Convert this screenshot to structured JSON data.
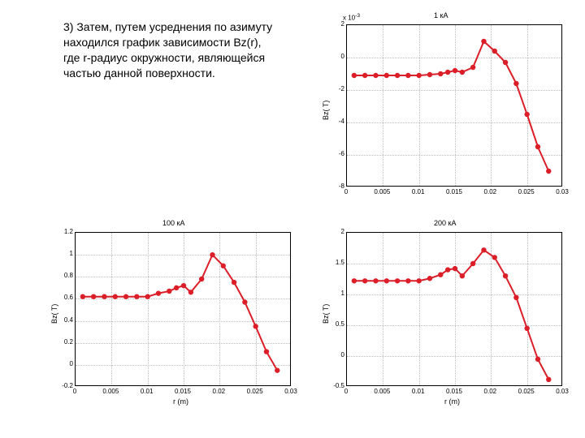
{
  "paragraph": "3) Затем, путем усреднения по азимуту находился график зависимости Bz(r), где r-радиус окружности, являющейся частью данной поверхности.",
  "common": {
    "line_color": "#dc1e28",
    "marker_color": "#dc1e28",
    "grid_color": "#bfbfbf",
    "background_color": "#ffffff",
    "line_width": 2,
    "marker_radius": 3.2,
    "font_color": "#000000",
    "tick_fontsize": 8,
    "label_fontsize": 9
  },
  "chart_topright": {
    "type": "line",
    "title": "1 кА",
    "ylabel": "Bz( T)",
    "xlabel": "",
    "yexponent": "x 10",
    "yexponent_power": "-3",
    "xlim": [
      0,
      0.03
    ],
    "ylim": [
      -8,
      2
    ],
    "xticks": [
      0,
      0.005,
      0.01,
      0.015,
      0.02,
      0.025,
      0.03
    ],
    "xtick_labels": [
      "0",
      "0.005",
      "0.01",
      "0.015",
      "0.02",
      "0.025",
      "0.03"
    ],
    "yticks": [
      -8,
      -6,
      -4,
      -2,
      0,
      2
    ],
    "ytick_labels": [
      "-8",
      "-6",
      "-4",
      "-2",
      "0",
      "2"
    ],
    "x": [
      0.001,
      0.0025,
      0.004,
      0.0055,
      0.007,
      0.0085,
      0.01,
      0.0115,
      0.013,
      0.014,
      0.015,
      0.016,
      0.0175,
      0.019,
      0.0205,
      0.022,
      0.0235,
      0.025,
      0.0265,
      0.028
    ],
    "y": [
      -1.1,
      -1.1,
      -1.1,
      -1.1,
      -1.1,
      -1.1,
      -1.1,
      -1.05,
      -1.0,
      -0.9,
      -0.8,
      -0.9,
      -0.6,
      1.0,
      0.4,
      -0.3,
      -1.6,
      -3.5,
      -5.5,
      -7.0
    ]
  },
  "chart_botleft": {
    "type": "line",
    "title": "100 кА",
    "ylabel": "Bz( T)",
    "xlabel": "r (m)",
    "xlim": [
      0,
      0.03
    ],
    "ylim": [
      -0.2,
      1.2
    ],
    "xticks": [
      0,
      0.005,
      0.01,
      0.015,
      0.02,
      0.025,
      0.03
    ],
    "xtick_labels": [
      "0",
      "0.005",
      "0.01",
      "0.015",
      "0.02",
      "0.025",
      "0.03"
    ],
    "yticks": [
      -0.2,
      0,
      0.2,
      0.4,
      0.6,
      0.8,
      1.0,
      1.2
    ],
    "ytick_labels": [
      "-0.2",
      "0",
      "0.2",
      "0.4",
      "0.6",
      "0.8",
      "1",
      "1.2"
    ],
    "x": [
      0.001,
      0.0025,
      0.004,
      0.0055,
      0.007,
      0.0085,
      0.01,
      0.0115,
      0.013,
      0.014,
      0.015,
      0.016,
      0.0175,
      0.019,
      0.0205,
      0.022,
      0.0235,
      0.025,
      0.0265,
      0.028
    ],
    "y": [
      0.62,
      0.62,
      0.62,
      0.62,
      0.62,
      0.62,
      0.62,
      0.65,
      0.67,
      0.7,
      0.72,
      0.66,
      0.78,
      1.0,
      0.9,
      0.75,
      0.57,
      0.35,
      0.12,
      -0.05
    ]
  },
  "chart_botright": {
    "type": "line",
    "title": "200 кА",
    "ylabel": "Bz( T)",
    "xlabel": "r (m)",
    "xlim": [
      0,
      0.03
    ],
    "ylim": [
      -0.5,
      2.0
    ],
    "xticks": [
      0,
      0.005,
      0.01,
      0.015,
      0.02,
      0.025,
      0.03
    ],
    "xtick_labels": [
      "0",
      "0.005",
      "0.01",
      "0.015",
      "0.02",
      "0.025",
      "0.03"
    ],
    "yticks": [
      -0.5,
      0,
      0.5,
      1.0,
      1.5,
      2.0
    ],
    "ytick_labels": [
      "-0.5",
      "0",
      "0.5",
      "1",
      "1.5",
      "2"
    ],
    "x": [
      0.001,
      0.0025,
      0.004,
      0.0055,
      0.007,
      0.0085,
      0.01,
      0.0115,
      0.013,
      0.014,
      0.015,
      0.016,
      0.0175,
      0.019,
      0.0205,
      0.022,
      0.0235,
      0.025,
      0.0265,
      0.028
    ],
    "y": [
      1.22,
      1.22,
      1.22,
      1.22,
      1.22,
      1.22,
      1.22,
      1.26,
      1.32,
      1.4,
      1.42,
      1.3,
      1.5,
      1.72,
      1.6,
      1.3,
      0.95,
      0.45,
      -0.05,
      -0.38
    ]
  }
}
